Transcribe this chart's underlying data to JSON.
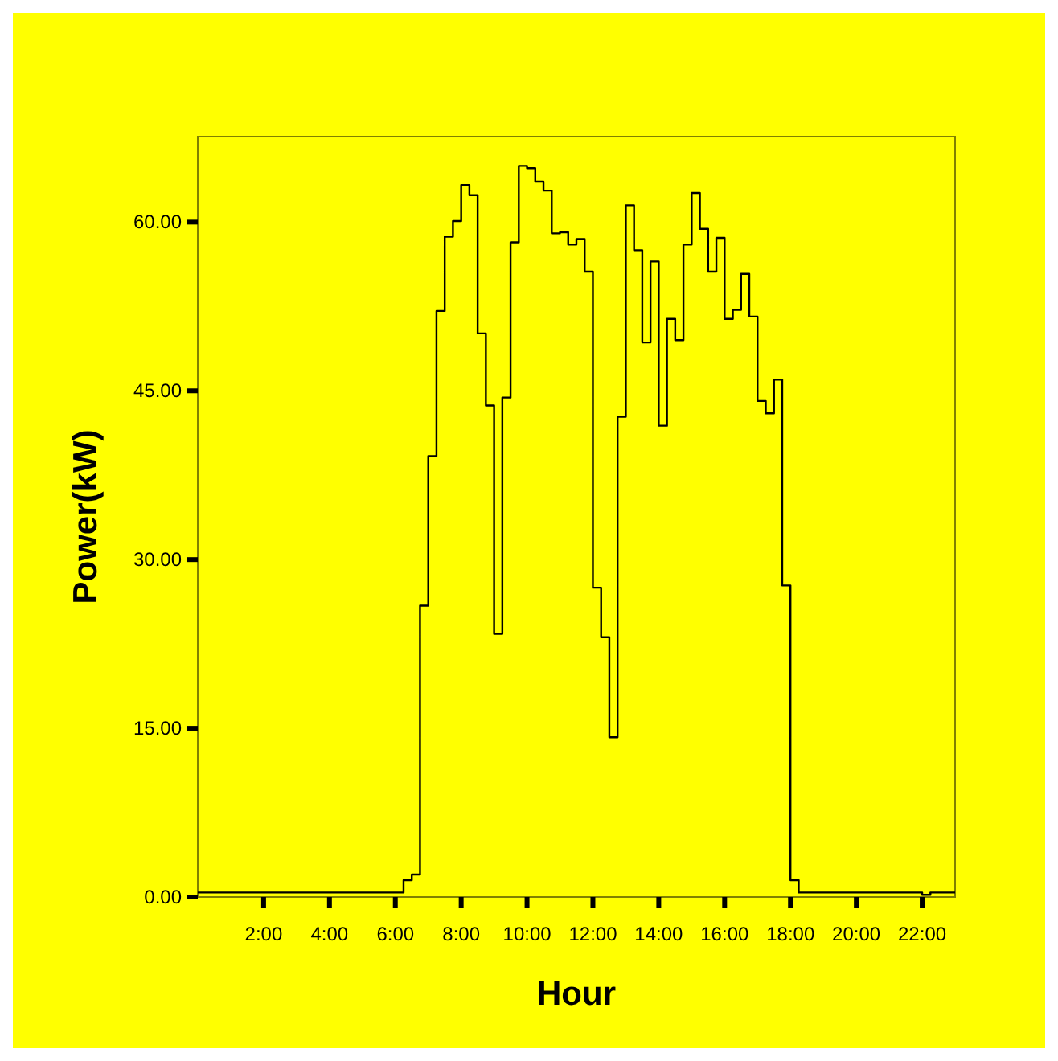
{
  "chart_data": {
    "type": "step",
    "xlabel": "Hour",
    "ylabel": "Power(kW)",
    "x": [
      0,
      6.25,
      6.5,
      6.75,
      7.0,
      7.25,
      7.5,
      7.75,
      8.0,
      8.25,
      8.5,
      8.75,
      9.0,
      9.25,
      9.5,
      9.75,
      10.0,
      10.25,
      10.5,
      10.75,
      11.0,
      11.25,
      11.5,
      11.75,
      12.0,
      12.25,
      12.5,
      12.75,
      13.0,
      13.25,
      13.5,
      13.75,
      14.0,
      14.25,
      14.5,
      14.75,
      15.0,
      15.25,
      15.5,
      15.75,
      16.0,
      16.25,
      16.5,
      16.75,
      17.0,
      17.25,
      17.5,
      17.75,
      18.0,
      18.25,
      22.0,
      22.25,
      23.0
    ],
    "series": [
      {
        "color": "#000000",
        "values": [
          0.4,
          1.5,
          2.0,
          25.9,
          39.2,
          52.1,
          58.7,
          60.1,
          63.3,
          62.4,
          50.1,
          43.7,
          23.4,
          44.4,
          58.2,
          65.0,
          64.8,
          63.6,
          62.8,
          59.0,
          59.1,
          58.0,
          58.5,
          55.6,
          27.5,
          23.1,
          14.2,
          42.7,
          61.5,
          57.5,
          49.3,
          56.5,
          41.9,
          51.4,
          49.5,
          58.0,
          62.6,
          59.4,
          55.6,
          58.6,
          51.4,
          52.2,
          55.4,
          51.6,
          44.1,
          43.0,
          46.0,
          27.7,
          1.5,
          0.4,
          0.2,
          0.4,
          0.4
        ]
      }
    ],
    "xlim": [
      0,
      23
    ],
    "xticks": [
      {
        "value": 2,
        "label": "2:00"
      },
      {
        "value": 4,
        "label": "4:00"
      },
      {
        "value": 6,
        "label": "6:00"
      },
      {
        "value": 8,
        "label": "8:00"
      },
      {
        "value": 10,
        "label": "10:00"
      },
      {
        "value": 12,
        "label": "12:00"
      },
      {
        "value": 14,
        "label": "14:00"
      },
      {
        "value": 16,
        "label": "16:00"
      },
      {
        "value": 18,
        "label": "18:00"
      },
      {
        "value": 20,
        "label": "20:00"
      },
      {
        "value": 22,
        "label": "22:00"
      }
    ],
    "ylim": [
      0,
      67.6
    ],
    "yticks": [
      {
        "value": 0,
        "label": "0.00"
      },
      {
        "value": 15,
        "label": "15.00"
      },
      {
        "value": 30,
        "label": "30.00"
      },
      {
        "value": 45,
        "label": "45.00"
      },
      {
        "value": 60,
        "label": "60.00"
      }
    ],
    "marker": "none",
    "line_style": "solid"
  }
}
